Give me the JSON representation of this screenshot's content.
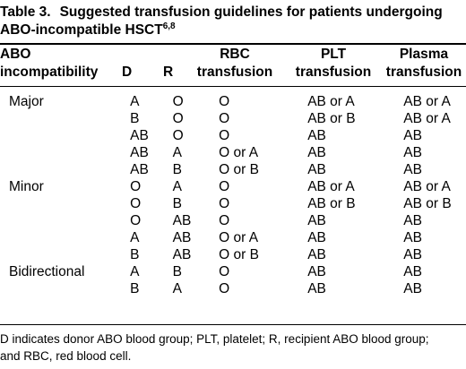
{
  "caption": {
    "number": "Table 3.",
    "title_line1": "Suggested transfusion guidelines for patients undergoing",
    "title_line2": "ABO-incompatible HSCT",
    "superscript": "6,8"
  },
  "columns": {
    "abo_line1": "ABO",
    "abo_line2": "incompatibility",
    "donor": "D",
    "recipient": "R",
    "rbc_line1": "RBC",
    "rbc_line2": "transfusion",
    "plt_line1": "PLT",
    "plt_line2": "transfusion",
    "plasma_line1": "Plasma",
    "plasma_line2": "transfusion"
  },
  "rows": [
    {
      "group": "Major",
      "d": "A",
      "r": "O",
      "rbc": "O",
      "plt": "AB or A",
      "plasma": "AB or A"
    },
    {
      "group": "",
      "d": "B",
      "r": "O",
      "rbc": "O",
      "plt": "AB or B",
      "plasma": "AB or A"
    },
    {
      "group": "",
      "d": "AB",
      "r": "O",
      "rbc": "O",
      "plt": "AB",
      "plasma": "AB"
    },
    {
      "group": "",
      "d": "AB",
      "r": "A",
      "rbc": "O or A",
      "plt": "AB",
      "plasma": "AB"
    },
    {
      "group": "",
      "d": "AB",
      "r": "B",
      "rbc": "O or B",
      "plt": "AB",
      "plasma": "AB"
    },
    {
      "group": "Minor",
      "d": "O",
      "r": "A",
      "rbc": "O",
      "plt": "AB or A",
      "plasma": "AB or A"
    },
    {
      "group": "",
      "d": "O",
      "r": "B",
      "rbc": "O",
      "plt": "AB or B",
      "plasma": "AB or B"
    },
    {
      "group": "",
      "d": "O",
      "r": "AB",
      "rbc": "O",
      "plt": "AB",
      "plasma": "AB"
    },
    {
      "group": "",
      "d": "A",
      "r": "AB",
      "rbc": "O or A",
      "plt": "AB",
      "plasma": "AB"
    },
    {
      "group": "",
      "d": "B",
      "r": "AB",
      "rbc": "O or B",
      "plt": "AB",
      "plasma": "AB"
    },
    {
      "group": "Bidirectional",
      "d": "A",
      "r": "B",
      "rbc": "O",
      "plt": "AB",
      "plasma": "AB"
    },
    {
      "group": "",
      "d": "B",
      "r": "A",
      "rbc": "O",
      "plt": "AB",
      "plasma": "AB"
    }
  ],
  "footnote": {
    "line1": "D indicates donor ABO blood group; PLT, platelet; R, recipient ABO blood group;",
    "line2": "and RBC, red blood cell."
  }
}
